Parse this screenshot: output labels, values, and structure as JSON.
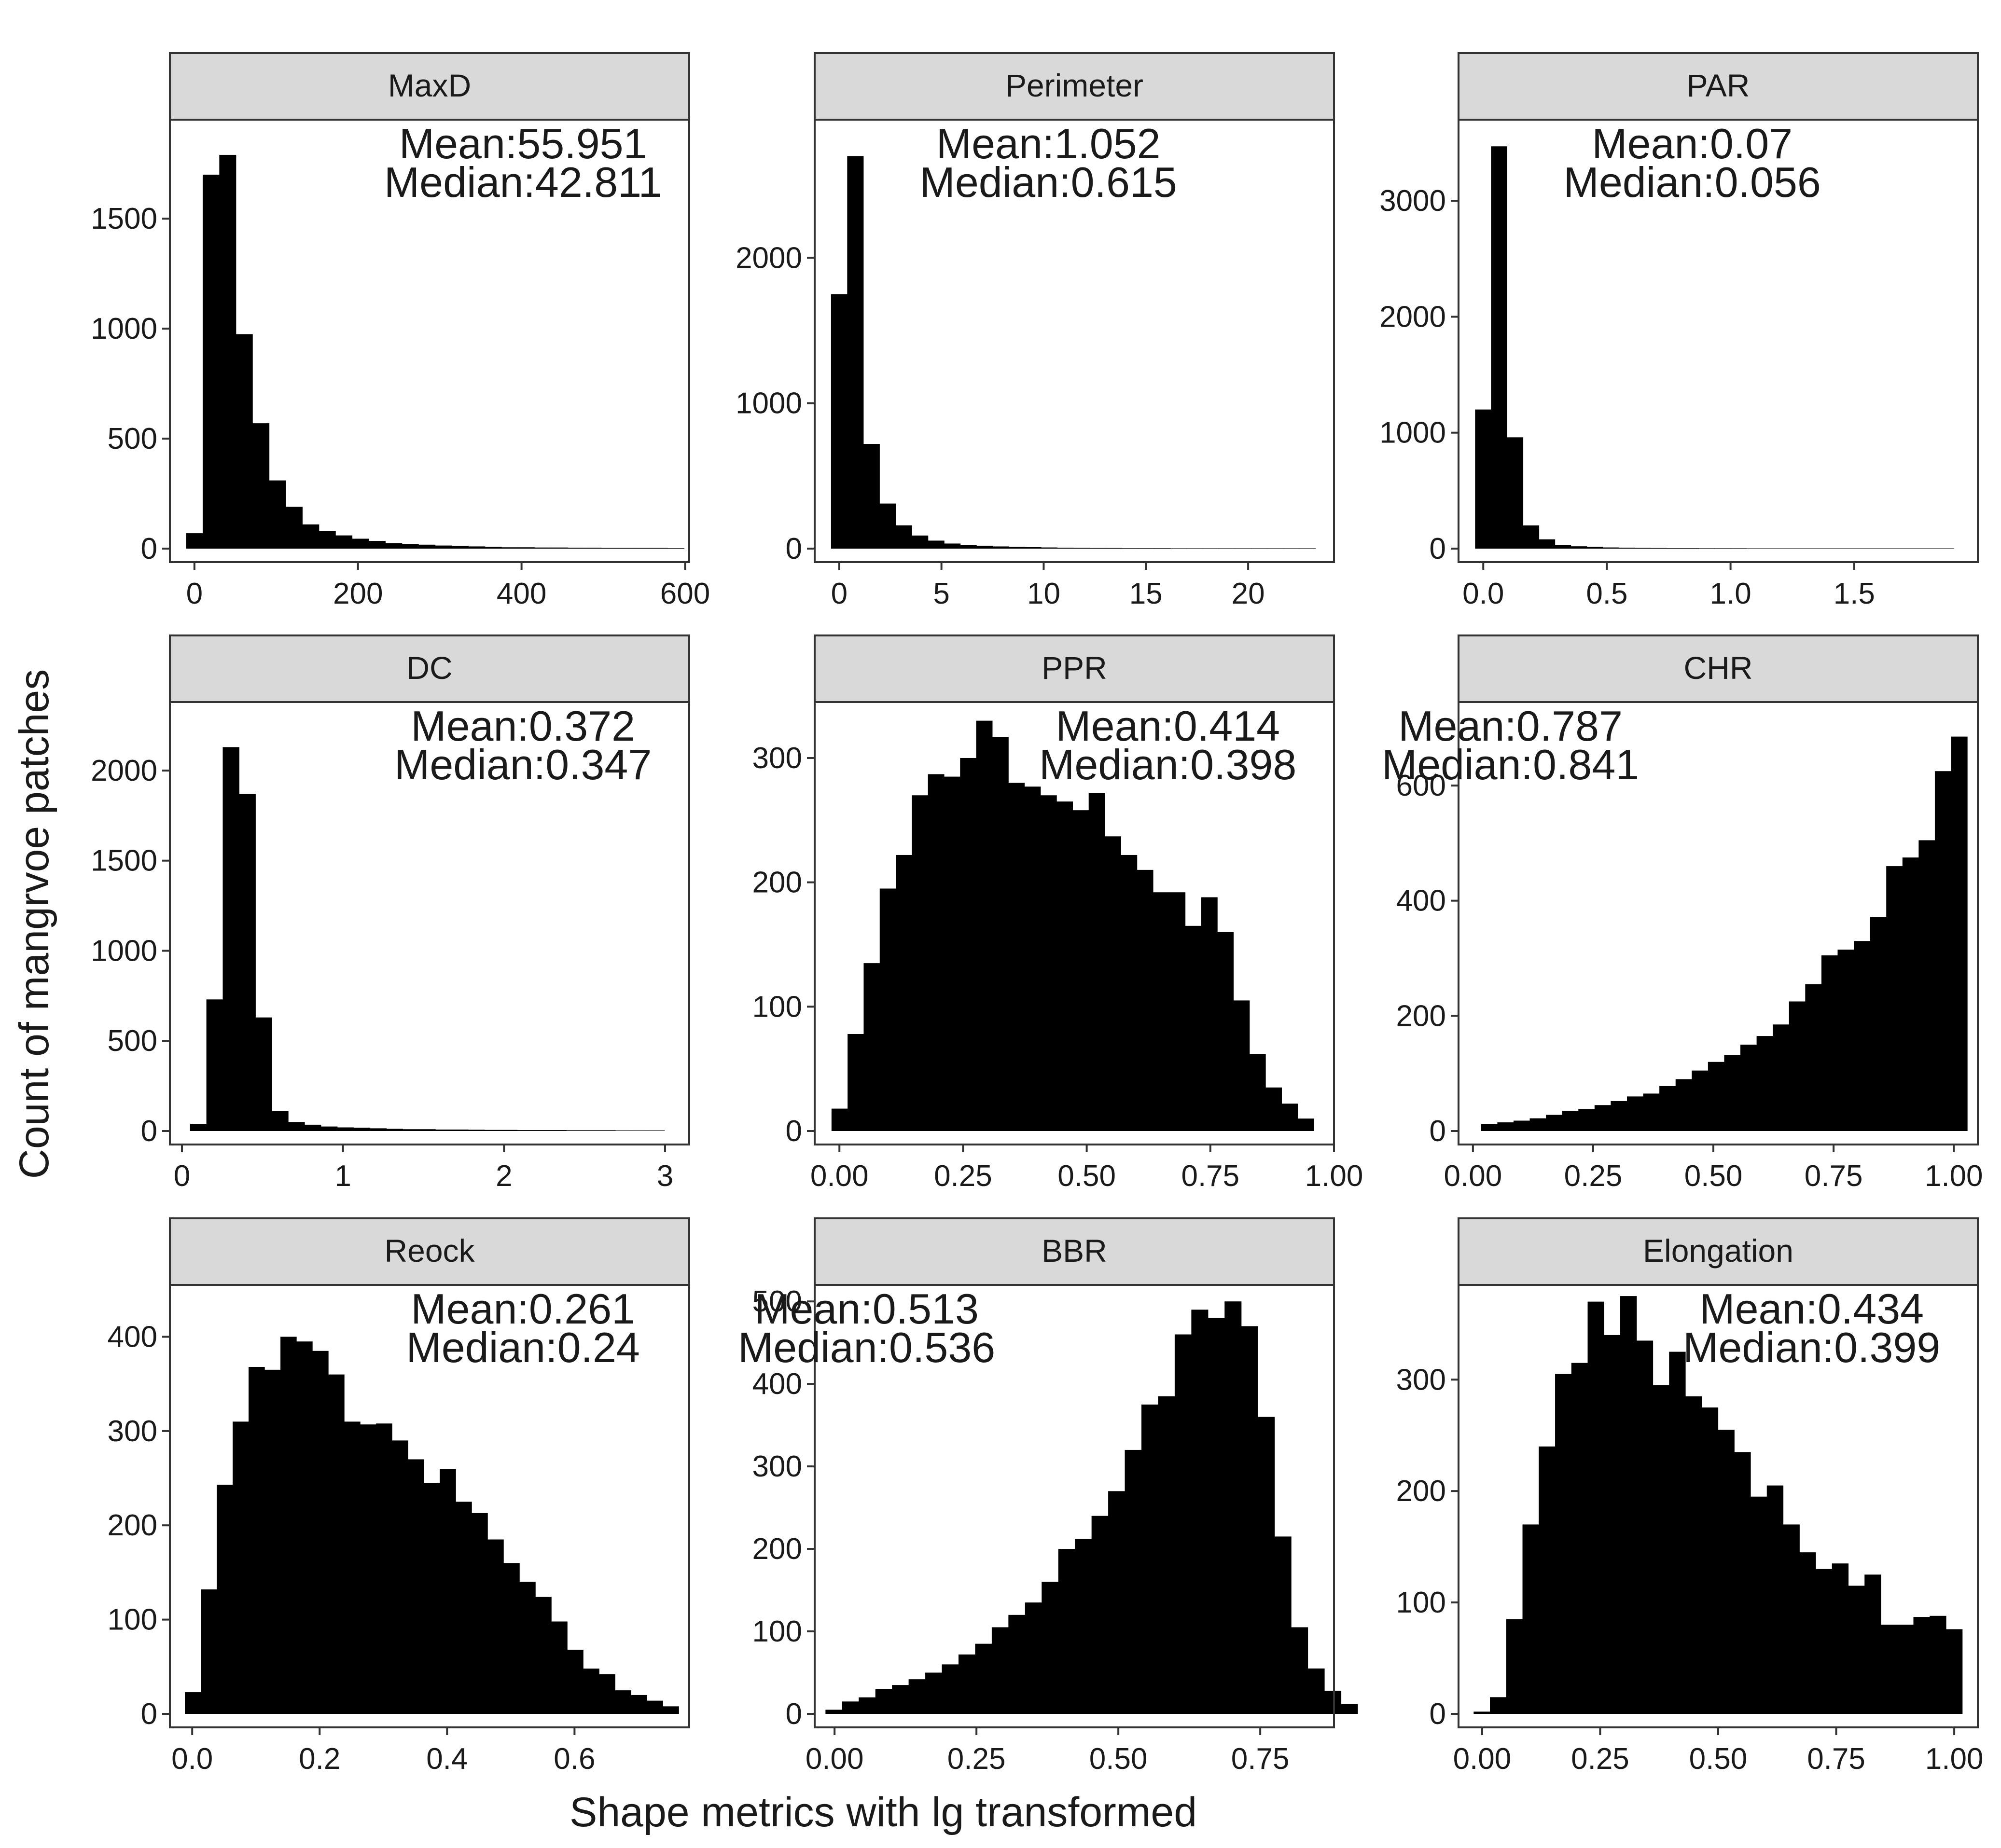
{
  "figure": {
    "xlabel": "Shape metrics with lg transformed",
    "ylabel": "Count of mangrvoe patches"
  },
  "chart_data": [
    {
      "type": "bar",
      "title": "MaxD",
      "xlim": [
        -30,
        605
      ],
      "ylim": [
        0,
        1950
      ],
      "xticks": [
        {
          "v": 0,
          "label": "0"
        },
        {
          "v": 200,
          "label": "200"
        },
        {
          "v": 400,
          "label": "400"
        },
        {
          "v": 600,
          "label": "600"
        }
      ],
      "yticks": [
        {
          "v": 0,
          "label": "0"
        },
        {
          "v": 500,
          "label": "500"
        },
        {
          "v": 1000,
          "label": "1000"
        },
        {
          "v": 1500,
          "label": "1500"
        }
      ],
      "bin_start": -10.2,
      "bin_width": 20.3,
      "values": [
        70,
        1700,
        1790,
        975,
        570,
        310,
        190,
        110,
        80,
        60,
        45,
        35,
        25,
        20,
        18,
        14,
        12,
        10,
        8,
        6,
        6,
        5,
        5,
        4,
        4,
        3,
        3,
        3,
        3,
        2
      ],
      "annotation": {
        "mean": "Mean:55.951",
        "median": "Median:42.811",
        "align": "right"
      }
    },
    {
      "type": "bar",
      "title": "Perimeter",
      "xlim": [
        -1.2,
        24.2
      ],
      "ylim": [
        0,
        2950
      ],
      "xticks": [
        {
          "v": 0,
          "label": "0"
        },
        {
          "v": 5,
          "label": "5"
        },
        {
          "v": 10,
          "label": "10"
        },
        {
          "v": 15,
          "label": "15"
        },
        {
          "v": 20,
          "label": "20"
        }
      ],
      "yticks": [
        {
          "v": 0,
          "label": "0"
        },
        {
          "v": 1000,
          "label": "1000"
        },
        {
          "v": 2000,
          "label": "2000"
        }
      ],
      "bin_start": -0.4,
      "bin_width": 0.79,
      "values": [
        1750,
        2700,
        720,
        310,
        160,
        90,
        55,
        35,
        25,
        20,
        15,
        12,
        10,
        8,
        6,
        5,
        4,
        4,
        3,
        3,
        3,
        2,
        2,
        2,
        2,
        2,
        2,
        2,
        2,
        2
      ],
      "annotation": {
        "mean": "Mean:1.052",
        "median": "Median:0.615",
        "align": "center"
      }
    },
    {
      "type": "bar",
      "title": "PAR",
      "xlim": [
        -0.1,
        2.0
      ],
      "ylim": [
        0,
        3700
      ],
      "xticks": [
        {
          "v": 0,
          "label": "0.0"
        },
        {
          "v": 0.5,
          "label": "0.5"
        },
        {
          "v": 1.0,
          "label": "1.0"
        },
        {
          "v": 1.5,
          "label": "1.5"
        }
      ],
      "yticks": [
        {
          "v": 0,
          "label": "0"
        },
        {
          "v": 1000,
          "label": "1000"
        },
        {
          "v": 2000,
          "label": "2000"
        },
        {
          "v": 3000,
          "label": "3000"
        }
      ],
      "bin_start": -0.033,
      "bin_width": 0.0645,
      "values": [
        1200,
        3470,
        960,
        200,
        80,
        30,
        20,
        15,
        10,
        8,
        6,
        5,
        4,
        4,
        3,
        3,
        3,
        2,
        2,
        2,
        2,
        2,
        2,
        2,
        2,
        2,
        2,
        2,
        2,
        2
      ],
      "annotation": {
        "mean": "Mean:0.07",
        "median": "Median:0.056",
        "align": "center"
      }
    },
    {
      "type": "bar",
      "title": "DC",
      "xlim": [
        -0.075,
        3.15
      ],
      "ylim": [
        0,
        2380
      ],
      "xticks": [
        {
          "v": 1,
          "label": "1"
        },
        {
          "v": 2,
          "label": "2"
        },
        {
          "v": 3,
          "label": "3"
        },
        {
          "v": 0,
          "label": "0"
        }
      ],
      "yticks": [
        {
          "v": 0,
          "label": "0"
        },
        {
          "v": 500,
          "label": "500"
        },
        {
          "v": 1000,
          "label": "1000"
        },
        {
          "v": 1500,
          "label": "1500"
        },
        {
          "v": 2000,
          "label": "2000"
        }
      ],
      "bin_start": 0.05,
      "bin_width": 0.1016,
      "values": [
        40,
        730,
        2130,
        1870,
        630,
        110,
        50,
        35,
        25,
        20,
        18,
        15,
        12,
        10,
        10,
        8,
        8,
        7,
        6,
        6,
        5,
        5,
        5,
        4,
        4,
        4,
        3,
        3,
        3
      ],
      "annotation": {
        "mean": "Mean:0.372",
        "median": "Median:0.347",
        "align": "right"
      }
    },
    {
      "type": "bar",
      "title": "PPR",
      "xlim": [
        -0.05,
        1.0
      ],
      "ylim": [
        0,
        345
      ],
      "xticks": [
        {
          "v": 0,
          "label": "0.00"
        },
        {
          "v": 0.25,
          "label": "0.25"
        },
        {
          "v": 0.5,
          "label": "0.50"
        },
        {
          "v": 0.75,
          "label": "0.75"
        },
        {
          "v": 1.0,
          "label": "1.00"
        }
      ],
      "yticks": [
        {
          "v": 0,
          "label": "0"
        },
        {
          "v": 100,
          "label": "100"
        },
        {
          "v": 200,
          "label": "200"
        },
        {
          "v": 300,
          "label": "300"
        }
      ],
      "bin_start": -0.016,
      "bin_width": 0.0325,
      "values": [
        18,
        78,
        135,
        195,
        222,
        270,
        287,
        285,
        300,
        330,
        317,
        280,
        277,
        270,
        265,
        258,
        272,
        237,
        222,
        210,
        192,
        192,
        165,
        188,
        160,
        105,
        62,
        35,
        22,
        10
      ],
      "annotation": {
        "mean": "Mean:0.414",
        "median": "Median:0.398",
        "align": "right"
      }
    },
    {
      "type": "bar",
      "title": "CHR",
      "xlim": [
        -0.03,
        1.05
      ],
      "ylim": [
        0,
        745
      ],
      "xticks": [
        {
          "v": 0,
          "label": "0.00"
        },
        {
          "v": 0.25,
          "label": "0.25"
        },
        {
          "v": 0.5,
          "label": "0.50"
        },
        {
          "v": 0.75,
          "label": "0.75"
        },
        {
          "v": 1.0,
          "label": "1.00"
        }
      ],
      "yticks": [
        {
          "v": 0,
          "label": "0"
        },
        {
          "v": 200,
          "label": "200"
        },
        {
          "v": 400,
          "label": "400"
        },
        {
          "v": 600,
          "label": "600"
        }
      ],
      "bin_start": 0.017,
      "bin_width": 0.0337,
      "values": [
        12,
        15,
        18,
        22,
        28,
        35,
        38,
        45,
        52,
        60,
        65,
        78,
        90,
        105,
        120,
        132,
        150,
        165,
        185,
        225,
        255,
        305,
        315,
        330,
        372,
        460,
        475,
        505,
        625,
        685
      ],
      "annotation": {
        "mean": "Mean:0.787",
        "median": "Median:0.841",
        "align": "left"
      }
    },
    {
      "type": "bar",
      "title": "Reock",
      "xlim": [
        -0.035,
        0.78
      ],
      "ylim": [
        0,
        455
      ],
      "xticks": [
        {
          "v": 0,
          "label": "0.0"
        },
        {
          "v": 0.2,
          "label": "0.2"
        },
        {
          "v": 0.4,
          "label": "0.4"
        },
        {
          "v": 0.6,
          "label": "0.6"
        }
      ],
      "yticks": [
        {
          "v": 0,
          "label": "0"
        },
        {
          "v": 100,
          "label": "100"
        },
        {
          "v": 200,
          "label": "200"
        },
        {
          "v": 300,
          "label": "300"
        },
        {
          "v": 400,
          "label": "400"
        }
      ],
      "bin_start": -0.0115,
      "bin_width": 0.025,
      "values": [
        23,
        132,
        243,
        310,
        368,
        365,
        400,
        395,
        385,
        360,
        310,
        307,
        308,
        290,
        270,
        245,
        260,
        225,
        213,
        185,
        160,
        140,
        124,
        98,
        68,
        48,
        42,
        25,
        20,
        14,
        8
      ],
      "annotation": {
        "mean": "Mean:0.261",
        "median": "Median:0.24",
        "align": "right"
      }
    },
    {
      "type": "bar",
      "title": "BBR",
      "xlim": [
        -0.035,
        0.88
      ],
      "ylim": [
        0,
        520
      ],
      "xticks": [
        {
          "v": 0,
          "label": "0.00"
        },
        {
          "v": 0.25,
          "label": "0.25"
        },
        {
          "v": 0.5,
          "label": "0.50"
        },
        {
          "v": 0.75,
          "label": "0.75"
        }
      ],
      "yticks": [
        {
          "v": 0,
          "label": "0"
        },
        {
          "v": 100,
          "label": "100"
        },
        {
          "v": 200,
          "label": "200"
        },
        {
          "v": 300,
          "label": "300"
        },
        {
          "v": 400,
          "label": "400"
        },
        {
          "v": 500,
          "label": "500"
        }
      ],
      "bin_start": -0.016,
      "bin_width": 0.0293,
      "values": [
        5,
        15,
        20,
        30,
        35,
        42,
        50,
        60,
        72,
        85,
        105,
        120,
        135,
        160,
        200,
        212,
        240,
        270,
        320,
        375,
        385,
        460,
        490,
        480,
        500,
        470,
        360,
        215,
        105,
        55,
        28,
        12
      ],
      "annotation": {
        "mean": "Mean:0.513",
        "median": "Median:0.536",
        "align": "left"
      }
    },
    {
      "type": "bar",
      "title": "Elongation",
      "xlim": [
        -0.05,
        1.05
      ],
      "ylim": [
        0,
        385
      ],
      "xticks": [
        {
          "v": 0,
          "label": "0.00"
        },
        {
          "v": 0.25,
          "label": "0.25"
        },
        {
          "v": 0.5,
          "label": "0.50"
        },
        {
          "v": 0.75,
          "label": "0.75"
        },
        {
          "v": 1.0,
          "label": "1.00"
        }
      ],
      "yticks": [
        {
          "v": 0,
          "label": "0"
        },
        {
          "v": 100,
          "label": "100"
        },
        {
          "v": 200,
          "label": "200"
        },
        {
          "v": 300,
          "label": "300"
        }
      ],
      "bin_start": -0.018,
      "bin_width": 0.0345,
      "values": [
        2,
        15,
        85,
        170,
        240,
        305,
        315,
        370,
        340,
        375,
        335,
        295,
        325,
        285,
        275,
        255,
        235,
        195,
        205,
        170,
        145,
        130,
        135,
        115,
        125,
        80,
        80,
        87,
        88,
        76
      ],
      "annotation": {
        "mean": "Mean:0.434",
        "median": "Median:0.399",
        "align": "right"
      }
    }
  ]
}
